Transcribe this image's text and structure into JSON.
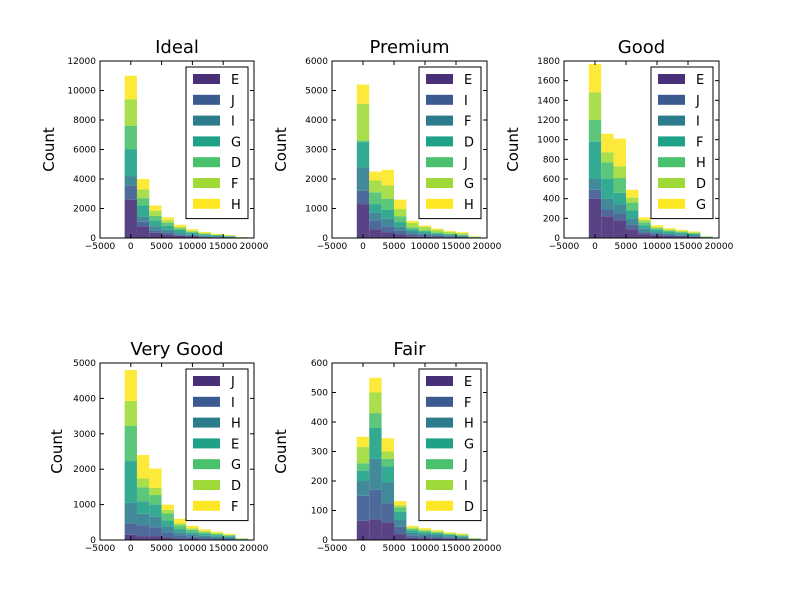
{
  "palette": [
    "#482f77",
    "#3b5a8f",
    "#2d7c8e",
    "#1fa187",
    "#4ac16d",
    "#a0da39",
    "#fde725"
  ],
  "chart_data": [
    {
      "type": "bar",
      "stacked": true,
      "title": "Ideal",
      "ylabel": "Count",
      "xlim": [
        -5000,
        20000
      ],
      "ylim": [
        0,
        12000
      ],
      "xticks": [
        "−5000",
        "0",
        "5000",
        "10000",
        "15000",
        "20000"
      ],
      "yticks": [
        "0",
        "2000",
        "4000",
        "6000",
        "8000",
        "10000",
        "12000"
      ],
      "legend_position": "top-right",
      "bin_edges": [
        -1000,
        1000,
        3000,
        5000,
        7000,
        9000,
        11000,
        13000,
        15000,
        17000,
        19000
      ],
      "series": [
        {
          "name": "E",
          "values": [
            2600,
            800,
            350,
            250,
            150,
            100,
            60,
            40,
            30,
            10
          ]
        },
        {
          "name": "J",
          "values": [
            950,
            300,
            150,
            120,
            70,
            40,
            30,
            20,
            15,
            5
          ]
        },
        {
          "name": "I",
          "values": [
            650,
            350,
            300,
            180,
            120,
            80,
            60,
            40,
            30,
            10
          ]
        },
        {
          "name": "G",
          "values": [
            1800,
            750,
            400,
            280,
            200,
            140,
            100,
            70,
            50,
            15
          ]
        },
        {
          "name": "D",
          "values": [
            1600,
            500,
            300,
            200,
            110,
            70,
            45,
            30,
            20,
            10
          ]
        },
        {
          "name": "F",
          "values": [
            1800,
            600,
            350,
            170,
            100,
            60,
            40,
            30,
            20,
            10
          ]
        },
        {
          "name": "H",
          "values": [
            1600,
            700,
            350,
            200,
            150,
            110,
            70,
            50,
            40,
            10
          ]
        }
      ]
    },
    {
      "type": "bar",
      "stacked": true,
      "title": "Premium",
      "ylabel": "Count",
      "xlim": [
        -5000,
        20000
      ],
      "ylim": [
        0,
        6000
      ],
      "xticks": [
        "−5000",
        "0",
        "5000",
        "10000",
        "15000",
        "20000"
      ],
      "yticks": [
        "0",
        "1000",
        "2000",
        "3000",
        "4000",
        "5000",
        "6000"
      ],
      "legend_position": "top-right",
      "bin_edges": [
        -1000,
        1000,
        3000,
        5000,
        7000,
        9000,
        11000,
        13000,
        15000,
        17000,
        19000
      ],
      "series": [
        {
          "name": "E",
          "values": [
            1150,
            300,
            200,
            120,
            60,
            40,
            30,
            20,
            15,
            5
          ]
        },
        {
          "name": "I",
          "values": [
            450,
            300,
            200,
            130,
            80,
            60,
            50,
            40,
            30,
            10
          ]
        },
        {
          "name": "F",
          "values": [
            800,
            250,
            250,
            130,
            80,
            60,
            40,
            30,
            25,
            5
          ]
        },
        {
          "name": "D",
          "values": [
            850,
            300,
            300,
            160,
            80,
            60,
            40,
            30,
            20,
            5
          ]
        },
        {
          "name": "J",
          "values": [
            50,
            400,
            380,
            200,
            60,
            40,
            30,
            20,
            20,
            10
          ]
        },
        {
          "name": "G",
          "values": [
            1250,
            400,
            450,
            240,
            150,
            120,
            90,
            70,
            55,
            15
          ]
        },
        {
          "name": "H",
          "values": [
            650,
            300,
            530,
            320,
            70,
            40,
            40,
            30,
            30,
            10
          ]
        }
      ]
    },
    {
      "type": "bar",
      "stacked": true,
      "title": "Good",
      "ylabel": "Count",
      "xlim": [
        -5000,
        20000
      ],
      "ylim": [
        0,
        1800
      ],
      "xticks": [
        "−5000",
        "0",
        "5000",
        "10000",
        "15000",
        "20000"
      ],
      "yticks": [
        "0",
        "200",
        "400",
        "600",
        "800",
        "1000",
        "1200",
        "1400",
        "1600",
        "1800"
      ],
      "legend_position": "top-right",
      "bin_edges": [
        -1000,
        1000,
        3000,
        5000,
        7000,
        9000,
        11000,
        13000,
        15000,
        17000,
        19000
      ],
      "series": [
        {
          "name": "E",
          "values": [
            400,
            220,
            180,
            90,
            40,
            25,
            20,
            15,
            10,
            3
          ]
        },
        {
          "name": "J",
          "values": [
            90,
            70,
            70,
            50,
            20,
            15,
            10,
            8,
            8,
            2
          ]
        },
        {
          "name": "I",
          "values": [
            110,
            110,
            90,
            60,
            35,
            20,
            15,
            15,
            12,
            3
          ]
        },
        {
          "name": "F",
          "values": [
            380,
            200,
            120,
            80,
            35,
            25,
            20,
            15,
            12,
            4
          ]
        },
        {
          "name": "H",
          "values": [
            220,
            170,
            150,
            80,
            30,
            15,
            12,
            10,
            8,
            2
          ]
        },
        {
          "name": "D",
          "values": [
            280,
            100,
            120,
            50,
            25,
            10,
            8,
            8,
            6,
            2
          ]
        },
        {
          "name": "G",
          "values": [
            290,
            190,
            280,
            80,
            25,
            20,
            15,
            12,
            10,
            2
          ]
        }
      ]
    },
    {
      "type": "bar",
      "stacked": true,
      "title": "Very Good",
      "ylabel": "Count",
      "xlim": [
        -5000,
        20000
      ],
      "ylim": [
        0,
        5000
      ],
      "xticks": [
        "−5000",
        "0",
        "5000",
        "10000",
        "15000",
        "20000"
      ],
      "yticks": [
        "0",
        "1000",
        "2000",
        "3000",
        "4000",
        "5000"
      ],
      "legend_position": "top-right",
      "bin_edges": [
        -1000,
        1000,
        3000,
        5000,
        7000,
        9000,
        11000,
        13000,
        15000,
        17000,
        19000
      ],
      "series": [
        {
          "name": "J",
          "values": [
            150,
            100,
            110,
            80,
            40,
            30,
            20,
            15,
            12,
            3
          ]
        },
        {
          "name": "I",
          "values": [
            320,
            320,
            250,
            140,
            90,
            60,
            50,
            40,
            30,
            8
          ]
        },
        {
          "name": "H",
          "values": [
            580,
            320,
            300,
            170,
            90,
            70,
            50,
            40,
            30,
            10
          ]
        },
        {
          "name": "E",
          "values": [
            1180,
            350,
            340,
            160,
            90,
            60,
            50,
            40,
            30,
            8
          ]
        },
        {
          "name": "G",
          "values": [
            1000,
            400,
            270,
            200,
            100,
            70,
            50,
            40,
            30,
            8
          ]
        },
        {
          "name": "D",
          "values": [
            700,
            250,
            200,
            100,
            60,
            40,
            30,
            20,
            15,
            5
          ]
        },
        {
          "name": "F",
          "values": [
            870,
            660,
            550,
            150,
            130,
            70,
            50,
            40,
            30,
            8
          ]
        }
      ]
    },
    {
      "type": "bar",
      "stacked": true,
      "title": "Fair",
      "ylabel": "Count",
      "xlim": [
        -5000,
        20000
      ],
      "ylim": [
        0,
        600
      ],
      "xticks": [
        "−5000",
        "0",
        "5000",
        "10000",
        "15000",
        "20000"
      ],
      "yticks": [
        "0",
        "100",
        "200",
        "300",
        "400",
        "500",
        "600"
      ],
      "legend_position": "top-right",
      "bin_edges": [
        -1000,
        1000,
        3000,
        5000,
        7000,
        9000,
        11000,
        13000,
        15000,
        17000,
        19000
      ],
      "series": [
        {
          "name": "E",
          "values": [
            65,
            70,
            60,
            20,
            8,
            6,
            5,
            4,
            3,
            1
          ]
        },
        {
          "name": "F",
          "values": [
            85,
            100,
            65,
            25,
            8,
            6,
            5,
            4,
            3,
            1
          ]
        },
        {
          "name": "H",
          "values": [
            50,
            105,
            70,
            25,
            8,
            8,
            7,
            5,
            4,
            1
          ]
        },
        {
          "name": "G",
          "values": [
            35,
            105,
            55,
            25,
            8,
            6,
            5,
            4,
            3,
            1
          ]
        },
        {
          "name": "J",
          "values": [
            25,
            50,
            25,
            15,
            6,
            5,
            4,
            3,
            3,
            1
          ]
        },
        {
          "name": "I",
          "values": [
            55,
            70,
            25,
            8,
            4,
            4,
            3,
            3,
            3,
            1
          ]
        },
        {
          "name": "D",
          "values": [
            35,
            50,
            45,
            14,
            6,
            5,
            4,
            3,
            3,
            1
          ]
        }
      ]
    }
  ]
}
